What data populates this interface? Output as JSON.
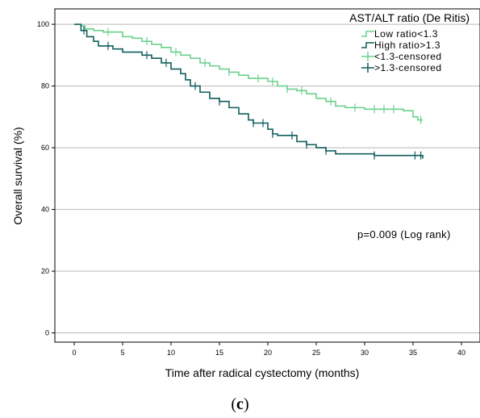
{
  "chart_data": {
    "type": "line",
    "step": true,
    "xlabel": "Time after radical cystectomy (months)",
    "ylabel": "Overall survival (%)",
    "xlim": [
      -2,
      42
    ],
    "ylim": [
      -3,
      105
    ],
    "xticks": [
      0,
      5,
      10,
      15,
      20,
      25,
      30,
      35,
      40
    ],
    "yticks": [
      0,
      20,
      40,
      60,
      80,
      100
    ],
    "grid": "horizontal",
    "legend_title": "AST/ALT ratio (De Ritis)",
    "legend_position": "top-right",
    "annotation": "p=0.009 (Log rank)",
    "series": [
      {
        "name": "Low ratio<1.3",
        "censored_name": "<1.3-censored",
        "color": "#6ad08c",
        "points": [
          [
            0,
            100
          ],
          [
            0.7,
            99.5
          ],
          [
            1.1,
            98.5
          ],
          [
            2,
            98
          ],
          [
            3,
            97.5
          ],
          [
            5,
            96
          ],
          [
            6,
            95.5
          ],
          [
            7,
            94.5
          ],
          [
            8,
            93.5
          ],
          [
            9,
            92.5
          ],
          [
            10,
            91
          ],
          [
            11,
            90
          ],
          [
            12,
            89
          ],
          [
            13,
            87.5
          ],
          [
            14,
            86.5
          ],
          [
            15,
            85.5
          ],
          [
            16,
            84.5
          ],
          [
            17,
            83.5
          ],
          [
            18,
            82.5
          ],
          [
            20,
            81.5
          ],
          [
            21,
            80
          ],
          [
            22,
            79
          ],
          [
            23,
            78.5
          ],
          [
            24,
            77.5
          ],
          [
            25,
            76
          ],
          [
            26,
            75
          ],
          [
            27,
            73.5
          ],
          [
            28,
            73
          ],
          [
            30,
            72.5
          ],
          [
            34,
            72
          ],
          [
            35,
            70
          ],
          [
            35.5,
            69
          ],
          [
            36,
            69
          ]
        ],
        "censored_x": [
          3.5,
          7.5,
          10.5,
          13.5,
          16,
          19,
          20.5,
          22,
          23.5,
          26.5,
          29,
          31,
          32,
          33,
          35.8
        ]
      },
      {
        "name": "High ratio>1.3",
        "censored_name": ">1.3-censored",
        "color": "#0f5e5c",
        "points": [
          [
            0,
            100
          ],
          [
            0.7,
            98
          ],
          [
            1.3,
            96
          ],
          [
            2,
            94.5
          ],
          [
            2.5,
            93
          ],
          [
            4,
            92
          ],
          [
            5,
            91
          ],
          [
            7,
            90
          ],
          [
            8,
            89
          ],
          [
            9,
            87.5
          ],
          [
            10,
            85.5
          ],
          [
            11,
            84
          ],
          [
            11.5,
            82
          ],
          [
            12,
            80
          ],
          [
            13,
            78
          ],
          [
            14,
            76
          ],
          [
            15,
            75
          ],
          [
            16,
            73
          ],
          [
            17,
            71
          ],
          [
            18,
            69
          ],
          [
            18.5,
            68
          ],
          [
            20,
            66
          ],
          [
            20.5,
            64.5
          ],
          [
            21,
            64
          ],
          [
            23,
            62
          ],
          [
            24,
            61
          ],
          [
            25,
            60
          ],
          [
            26,
            59
          ],
          [
            27,
            58
          ],
          [
            31,
            57.5
          ],
          [
            36,
            56.5
          ]
        ],
        "censored_x": [
          1,
          3.5,
          7.5,
          9.5,
          12.5,
          15,
          18.5,
          19.5,
          20.5,
          22.5,
          24,
          26,
          31,
          35.2,
          35.8
        ]
      }
    ]
  },
  "caption_text": "c"
}
